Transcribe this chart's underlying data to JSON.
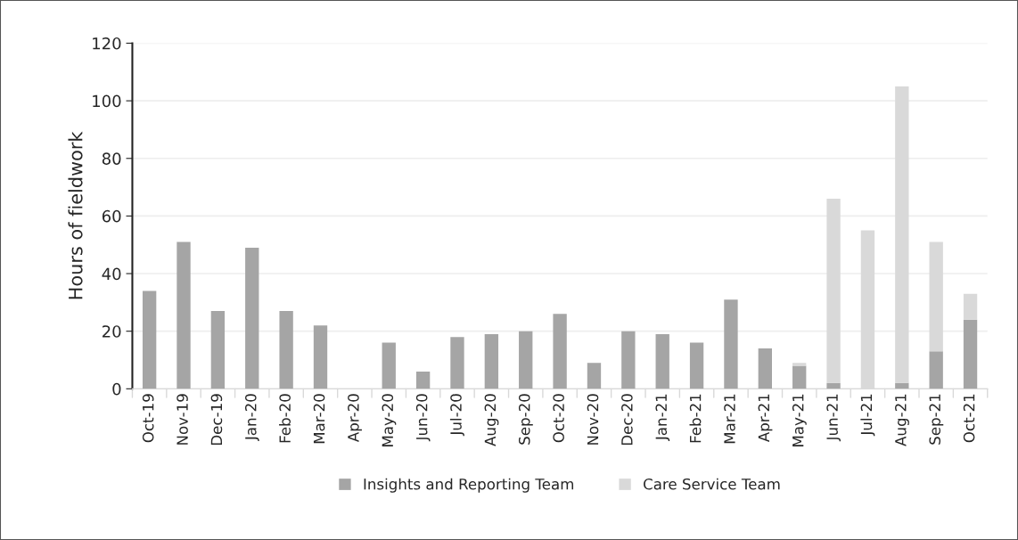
{
  "chart_data": {
    "type": "bar",
    "ylabel": "Hours of fieldwork",
    "stacked": true,
    "categories": [
      "Oct-19",
      "Nov-19",
      "Dec-19",
      "Jan-20",
      "Feb-20",
      "Mar-20",
      "Apr-20",
      "May-20",
      "Jun-20",
      "Jul-20",
      "Aug-20",
      "Sep-20",
      "Oct-20",
      "Nov-20",
      "Dec-20",
      "Jan-21",
      "Feb-21",
      "Mar-21",
      "Apr-21",
      "May-21",
      "Jun-21",
      "Jul-21",
      "Aug-21",
      "Sep-21",
      "Oct-21"
    ],
    "series": [
      {
        "name": "Insights and Reporting Team",
        "color": "#a5a5a5",
        "values": [
          34,
          51,
          27,
          49,
          27,
          22,
          null,
          16,
          6,
          18,
          19,
          20,
          26,
          9,
          20,
          19,
          16,
          31,
          14,
          8,
          2,
          null,
          2,
          13,
          24
        ]
      },
      {
        "name": "Care Service Team",
        "color": "#d9d9d9",
        "values": [
          null,
          null,
          null,
          null,
          null,
          null,
          null,
          null,
          null,
          null,
          null,
          null,
          null,
          null,
          null,
          null,
          null,
          null,
          null,
          1,
          64,
          55,
          103,
          38,
          9
        ]
      }
    ],
    "ylim": [
      0,
      120
    ],
    "yticks": [
      0,
      20,
      40,
      60,
      80,
      100,
      120
    ],
    "grid": "y",
    "legend": "bottom"
  }
}
